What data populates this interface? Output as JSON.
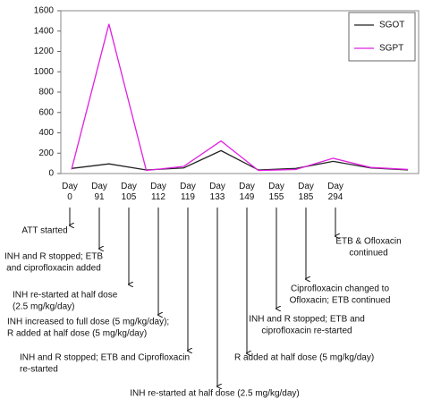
{
  "chart_data": {
    "type": "line",
    "categories": [
      "Day 0",
      "Day 91",
      "Day 105",
      "Day 112",
      "Day 119",
      "Day 133",
      "Day 149",
      "Day 155",
      "Day 185",
      "Day 294"
    ],
    "series": [
      {
        "name": "SGOT",
        "color": "#222222",
        "values": [
          50,
          95,
          35,
          55,
          225,
          35,
          50,
          120,
          55,
          35
        ]
      },
      {
        "name": "SGPT",
        "color": "#e020e0",
        "values": [
          40,
          1470,
          30,
          70,
          320,
          30,
          40,
          150,
          60,
          40
        ]
      }
    ],
    "ylim": [
      0,
      1600
    ],
    "yticks": [
      0,
      200,
      400,
      600,
      800,
      1000,
      1200,
      1400,
      1600
    ],
    "legend": "upper right",
    "annotations": [
      [
        "ATT started"
      ],
      [
        "INH and R stopped; ETB",
        "and ciprofloxacin added"
      ],
      [
        "INH re-started at half dose",
        "(2.5 mg/kg/day)"
      ],
      [
        "INH increased to full dose (5 mg/kg/day);",
        "R added at half dose (5 mg/kg/day)"
      ],
      [
        "INH and R stopped; ETB and Ciprofloxacin",
        "re-started"
      ],
      [
        "INH re-started at half dose (2.5 mg/kg/day)"
      ],
      [
        "R added at half dose (5 mg/kg/day)"
      ],
      [
        "INH and R stopped; ETB and",
        "ciprofloxacin re-started"
      ],
      [
        "Ciprofloxacin changed to",
        "Ofloxacin; ETB continued"
      ],
      [
        "ETB & Ofloxacin",
        "continued"
      ]
    ]
  }
}
